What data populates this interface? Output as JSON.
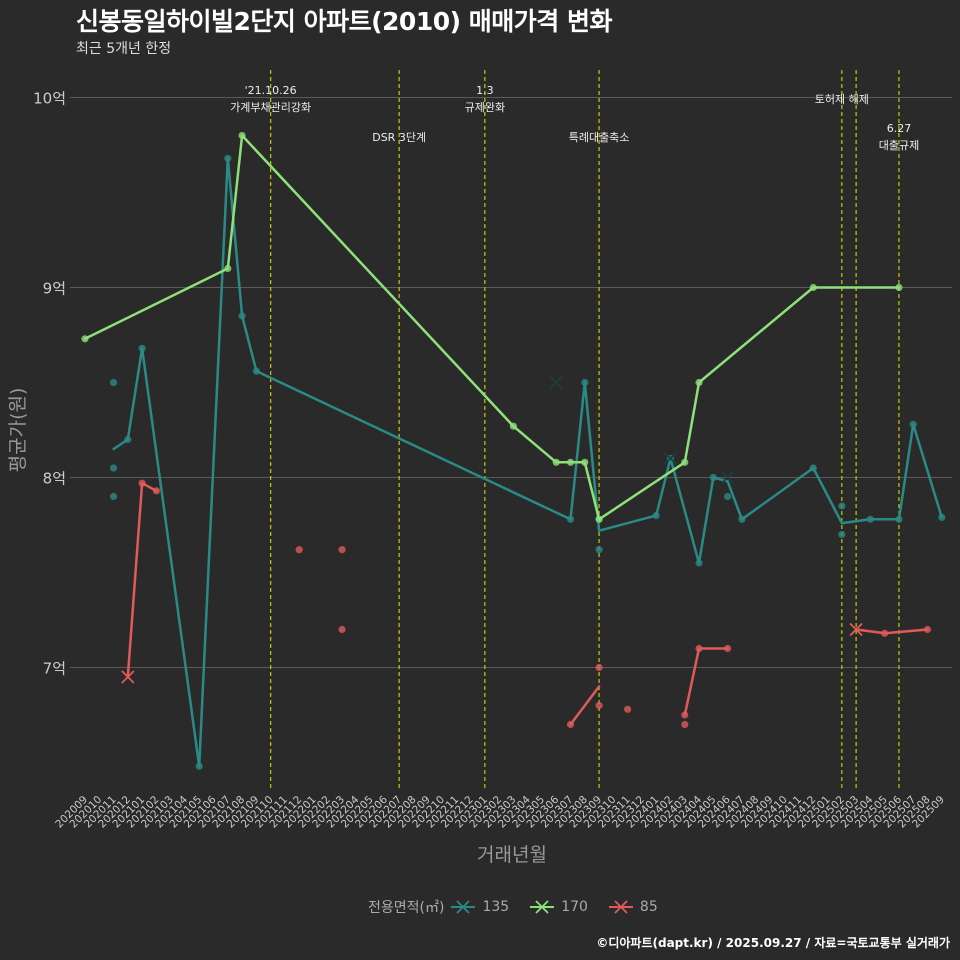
{
  "title": "신봉동일하이빌2단지 아파트(2010) 매매가격 변화",
  "subtitle": "최근 5개년 한정",
  "caption": "©디아파트(dapt.kr) / 2025.09.27 / 자료=국토교통부 실거래가",
  "colors": {
    "background": "#2b2a2b",
    "grid": "#5a5a5a",
    "event_line": "#c8c800",
    "s135": "#2a8a86",
    "s170": "#8ee07a",
    "s85": "#e05a5a"
  },
  "chart_data": {
    "type": "line",
    "xlabel": "거래년월",
    "ylabel": "평균가(원)",
    "ylim": [
      6.3,
      10.05
    ],
    "yticks": [
      {
        "v": 7,
        "label": "7억"
      },
      {
        "v": 8,
        "label": "8억"
      },
      {
        "v": 9,
        "label": "9억"
      },
      {
        "v": 10,
        "label": "10억"
      }
    ],
    "categories": [
      "202009",
      "202010",
      "202011",
      "202012",
      "202101",
      "202102",
      "202103",
      "202104",
      "202105",
      "202106",
      "202107",
      "202108",
      "202109",
      "202110",
      "202111",
      "202112",
      "202201",
      "202202",
      "202203",
      "202204",
      "202205",
      "202206",
      "202207",
      "202208",
      "202209",
      "202210",
      "202211",
      "202212",
      "202301",
      "202302",
      "202303",
      "202304",
      "202305",
      "202306",
      "202307",
      "202308",
      "202309",
      "202310",
      "202311",
      "202312",
      "202401",
      "202402",
      "202403",
      "202404",
      "202405",
      "202406",
      "202407",
      "202408",
      "202409",
      "202410",
      "202411",
      "202412",
      "202501",
      "202502",
      "202503",
      "202504",
      "202505",
      "202506",
      "202507",
      "202508",
      "202509"
    ],
    "events": [
      {
        "x": "202110",
        "labels": [
          "'21.10.26",
          "가계부채관리강화"
        ],
        "level": "high"
      },
      {
        "x": "202207",
        "labels": [
          "DSR 3단계"
        ],
        "level": "low"
      },
      {
        "x": "202301",
        "labels": [
          "1.3",
          "규제완화"
        ],
        "level": "high"
      },
      {
        "x": "202309",
        "labels": [
          "특례대출축소"
        ],
        "level": "low"
      },
      {
        "x": "202502",
        "labels": [
          "토허제 해제"
        ],
        "level": "mid"
      },
      {
        "x": "202503",
        "labels": [],
        "level": "none"
      },
      {
        "x": "202506",
        "labels": [
          "6.27",
          "대출규제"
        ],
        "level": "lower"
      }
    ],
    "legend_title": "전용면적(㎡)",
    "series": [
      {
        "name": "135",
        "color_key": "s135",
        "line": [
          {
            "x": "202011",
            "y": 8.15
          },
          {
            "x": "202012",
            "y": 8.2
          },
          {
            "x": "202101",
            "y": 8.68
          },
          {
            "x": "202105",
            "y": 6.48
          },
          {
            "x": "202107",
            "y": 9.68
          },
          {
            "x": "202108",
            "y": 8.85
          },
          {
            "x": "202109",
            "y": 8.56
          },
          {
            "x": "202307",
            "y": 7.78
          },
          {
            "x": "202308",
            "y": 8.5
          },
          {
            "x": "202309",
            "y": 7.72
          },
          {
            "x": "202401",
            "y": 7.8
          },
          {
            "x": "202402",
            "y": 8.1
          },
          {
            "x": "202404",
            "y": 7.55
          },
          {
            "x": "202405",
            "y": 8.0
          },
          {
            "x": "202406",
            "y": 7.98
          },
          {
            "x": "202407",
            "y": 7.78
          },
          {
            "x": "202412",
            "y": 8.05
          },
          {
            "x": "202502",
            "y": 7.76
          },
          {
            "x": "202504",
            "y": 7.78
          },
          {
            "x": "202506",
            "y": 7.78
          },
          {
            "x": "202507",
            "y": 8.28
          },
          {
            "x": "202509",
            "y": 7.79
          }
        ],
        "points": [
          {
            "x": "202011",
            "y": 8.5
          },
          {
            "x": "202011",
            "y": 8.05
          },
          {
            "x": "202011",
            "y": 7.9
          },
          {
            "x": "202012",
            "y": 8.2
          },
          {
            "x": "202101",
            "y": 8.68
          },
          {
            "x": "202105",
            "y": 6.48
          },
          {
            "x": "202107",
            "y": 9.68
          },
          {
            "x": "202108",
            "y": 8.85
          },
          {
            "x": "202109",
            "y": 8.56
          },
          {
            "x": "202307",
            "y": 7.78
          },
          {
            "x": "202308",
            "y": 8.5
          },
          {
            "x": "202309",
            "y": 7.62
          },
          {
            "x": "202309",
            "y": 7.78
          },
          {
            "x": "202401",
            "y": 7.8
          },
          {
            "x": "202402",
            "y": 8.1
          },
          {
            "x": "202404",
            "y": 7.55
          },
          {
            "x": "202405",
            "y": 8.0
          },
          {
            "x": "202406",
            "y": 7.9
          },
          {
            "x": "202407",
            "y": 7.78
          },
          {
            "x": "202412",
            "y": 8.05
          },
          {
            "x": "202502",
            "y": 7.85
          },
          {
            "x": "202502",
            "y": 7.7
          },
          {
            "x": "202504",
            "y": 7.78
          },
          {
            "x": "202506",
            "y": 7.78
          },
          {
            "x": "202507",
            "y": 8.28
          },
          {
            "x": "202509",
            "y": 7.79
          }
        ],
        "crosses": [
          {
            "x": "202306",
            "y": 8.5
          },
          {
            "x": "202402",
            "y": 8.1
          },
          {
            "x": "202406",
            "y": 8.0
          }
        ]
      },
      {
        "name": "170",
        "color_key": "s170",
        "line": [
          {
            "x": "202009",
            "y": 8.73
          },
          {
            "x": "202107",
            "y": 9.1
          },
          {
            "x": "202108",
            "y": 9.8
          },
          {
            "x": "202303",
            "y": 8.27
          },
          {
            "x": "202306",
            "y": 8.08
          },
          {
            "x": "202307",
            "y": 8.08
          },
          {
            "x": "202308",
            "y": 8.08
          },
          {
            "x": "202309",
            "y": 7.78
          },
          {
            "x": "202403",
            "y": 8.08
          },
          {
            "x": "202404",
            "y": 8.5
          },
          {
            "x": "202412",
            "y": 9.0
          },
          {
            "x": "202506",
            "y": 9.0
          }
        ],
        "points": [
          {
            "x": "202009",
            "y": 8.73
          },
          {
            "x": "202107",
            "y": 9.1
          },
          {
            "x": "202108",
            "y": 9.8
          },
          {
            "x": "202303",
            "y": 8.27
          },
          {
            "x": "202306",
            "y": 8.08
          },
          {
            "x": "202307",
            "y": 8.08
          },
          {
            "x": "202308",
            "y": 8.08
          },
          {
            "x": "202309",
            "y": 7.78
          },
          {
            "x": "202403",
            "y": 8.08
          },
          {
            "x": "202404",
            "y": 8.5
          },
          {
            "x": "202412",
            "y": 9.0
          },
          {
            "x": "202506",
            "y": 9.0
          }
        ],
        "crosses": []
      },
      {
        "name": "85",
        "color_key": "s85",
        "line_segments": [
          [
            {
              "x": "202012",
              "y": 6.95
            },
            {
              "x": "202101",
              "y": 7.97
            },
            {
              "x": "202102",
              "y": 7.93
            }
          ],
          [
            {
              "x": "202307",
              "y": 6.7
            },
            {
              "x": "202309",
              "y": 6.9
            }
          ],
          [
            {
              "x": "202403",
              "y": 6.75
            },
            {
              "x": "202404",
              "y": 7.1
            },
            {
              "x": "202405",
              "y": 7.1
            },
            {
              "x": "202406",
              "y": 7.1
            }
          ],
          [
            {
              "x": "202503",
              "y": 7.2
            },
            {
              "x": "202505",
              "y": 7.18
            },
            {
              "x": "202508",
              "y": 7.2
            }
          ]
        ],
        "points": [
          {
            "x": "202101",
            "y": 7.97
          },
          {
            "x": "202102",
            "y": 7.93
          },
          {
            "x": "202112",
            "y": 7.62
          },
          {
            "x": "202203",
            "y": 7.62
          },
          {
            "x": "202203",
            "y": 7.2
          },
          {
            "x": "202307",
            "y": 6.7
          },
          {
            "x": "202309",
            "y": 7.0
          },
          {
            "x": "202309",
            "y": 6.8
          },
          {
            "x": "202311",
            "y": 6.78
          },
          {
            "x": "202403",
            "y": 6.75
          },
          {
            "x": "202403",
            "y": 6.7
          },
          {
            "x": "202404",
            "y": 7.1
          },
          {
            "x": "202406",
            "y": 7.1
          },
          {
            "x": "202505",
            "y": 7.18
          },
          {
            "x": "202508",
            "y": 7.2
          }
        ],
        "crosses": [
          {
            "x": "202012",
            "y": 6.95
          },
          {
            "x": "202503",
            "y": 7.2
          }
        ]
      }
    ]
  }
}
